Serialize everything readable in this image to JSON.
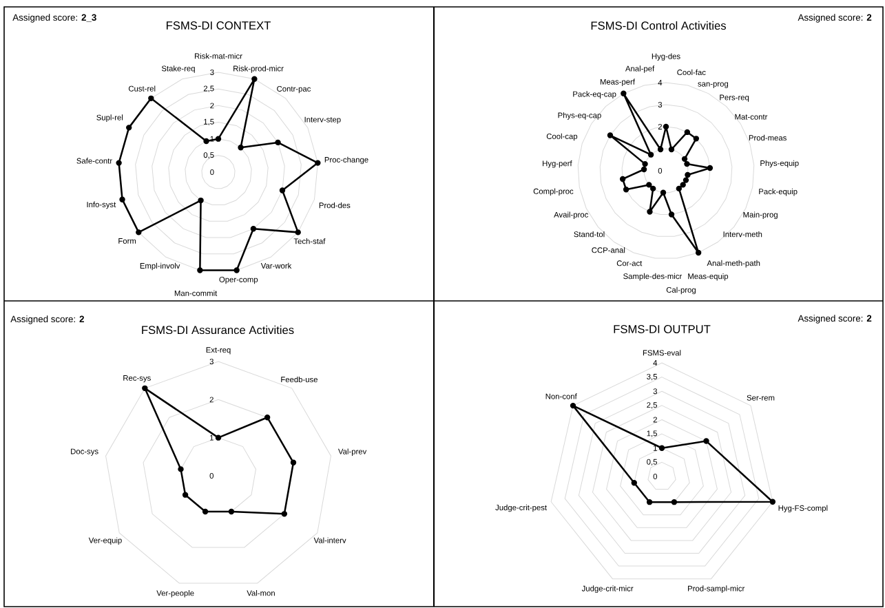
{
  "chart_data": [
    {
      "type": "radar",
      "title": "FSMS-DI CONTEXT",
      "annotations": [
        "Assigned score: **2_3**"
      ],
      "categories": [
        "Risk-mat-micr",
        "Risk-prod-micr",
        "Contr-pac",
        "Interv-step",
        "Proc-change",
        "Prod-des",
        "Tech-staf",
        "Var-work",
        "Oper-comp",
        "Man-commit",
        "Empl-involv",
        "Form",
        "Info-syst",
        "Safe-contr",
        "Supl-rel",
        "Cust-rel",
        "Stake-req"
      ],
      "series": [
        {
          "color": "#000000",
          "values": [
            1,
            3,
            1,
            2,
            3,
            2,
            3,
            2,
            3,
            3,
            1,
            3,
            3,
            3,
            3,
            3,
            1
          ]
        }
      ],
      "ylim": [
        0,
        3
      ],
      "yticks": [
        0,
        {
          "value": 0.5,
          "label": "0,5"
        },
        1,
        {
          "value": 1.5,
          "label": "1,5"
        },
        2,
        {
          "value": 2.5,
          "label": "2,5"
        },
        3
      ],
      "grid": true,
      "marker": "circle"
    },
    {
      "type": "radar",
      "title": "FSMS-DI Control Activities",
      "annotations": [
        "Assigned score: **2**"
      ],
      "categories": [
        "Hyg-des",
        "Cool-fac",
        "san-prog",
        "Pers-req",
        "Mat-contr",
        "Prod-meas",
        "Phys-equip",
        "Pack-equip",
        "Main-prog",
        "Interv-meth",
        "Anal-meth-path",
        "Meas-equip",
        "Cal-prog",
        "Sample-des-micr",
        "Cor-act",
        "CCP-anal",
        "Stand-tol",
        "Avail-proc",
        "Compl-proc",
        "Hyg-perf",
        "Cool-cap",
        "Phys-eq-cap",
        "Pack-eq-cap",
        "Meas-perf",
        "Anal-pef"
      ],
      "series": [
        {
          "color": "#000000",
          "values": [
            2,
            1,
            2,
            2,
            1,
            1,
            2,
            1,
            1,
            1,
            1,
            4,
            2,
            1,
            2,
            1,
            1,
            2,
            2,
            1,
            1,
            3,
            1,
            4,
            1
          ]
        }
      ],
      "ylim": [
        0,
        4
      ],
      "yticks": [
        0,
        1,
        2,
        3,
        4
      ],
      "grid": true,
      "marker": "circle"
    },
    {
      "type": "radar",
      "title": "FSMS-DI Assurance Activities",
      "annotations": [
        "Assigned score: **2**"
      ],
      "categories": [
        "Ext-req",
        "Feedb-use",
        "Val-prev",
        "Val-interv",
        "Val-mon",
        "Ver-people",
        "Ver-equip",
        "Doc-sys",
        "Rec-sys"
      ],
      "series": [
        {
          "color": "#000000",
          "values": [
            1,
            2,
            2,
            2,
            1,
            1,
            1,
            1,
            3
          ]
        }
      ],
      "ylim": [
        0,
        3
      ],
      "yticks": [
        0,
        1,
        2,
        3
      ],
      "grid": true,
      "marker": "circle"
    },
    {
      "type": "radar",
      "title": "FSMS-DI OUTPUT",
      "annotations": [
        "Assigned score: **2**"
      ],
      "categories": [
        "FSMS-eval",
        "Ser-rem",
        "Hyg-FS-compl",
        "Prod-sampl-micr",
        "Judge-crit-micr",
        "Judge-crit-pest",
        "Non-conf"
      ],
      "series": [
        {
          "color": "#000000",
          "values": [
            1,
            2,
            4,
            1,
            1,
            1,
            4
          ]
        }
      ],
      "ylim": [
        0,
        4
      ],
      "yticks": [
        0,
        {
          "value": 0.5,
          "label": "0,5"
        },
        1,
        {
          "value": 1.5,
          "label": "1,5"
        },
        2,
        {
          "value": 2.5,
          "label": "2,5"
        },
        3,
        {
          "value": 3.5,
          "label": "3,5"
        },
        4
      ],
      "grid": true,
      "marker": "circle"
    }
  ]
}
